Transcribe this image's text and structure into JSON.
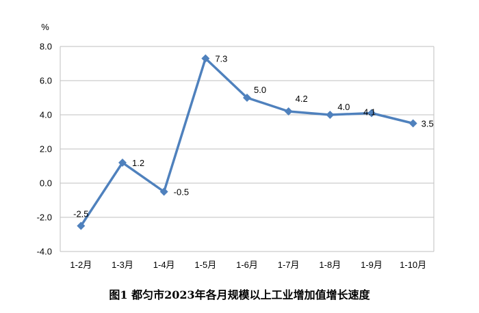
{
  "chart_data": {
    "type": "line",
    "caption": "图1  都匀市2023年各月规模以上工业增加值增长速度",
    "y_unit": "%",
    "categories": [
      "1-2月",
      "1-3月",
      "1-4月",
      "1-5月",
      "1-6月",
      "1-7月",
      "1-8月",
      "1-9月",
      "1-10月"
    ],
    "values": [
      -2.5,
      1.2,
      -0.5,
      7.3,
      5.0,
      4.2,
      4.0,
      4.1,
      3.5
    ],
    "data_labels": [
      "-2.5",
      "1.2",
      "-0.5",
      "7.3",
      "5.0",
      "4.2",
      "4.0",
      "4.1",
      "3.5"
    ],
    "ylim": [
      -4.0,
      8.0
    ],
    "y_ticks": [
      "8.0",
      "6.0",
      "4.0",
      "2.0",
      "0.0",
      "-2.0",
      "-4.0"
    ],
    "y_tick_values": [
      8,
      6,
      4,
      2,
      0,
      -2,
      -4
    ],
    "grid": true,
    "legend": false,
    "series_color": "#4F81BD",
    "grid_color": "#BFBFBF"
  }
}
